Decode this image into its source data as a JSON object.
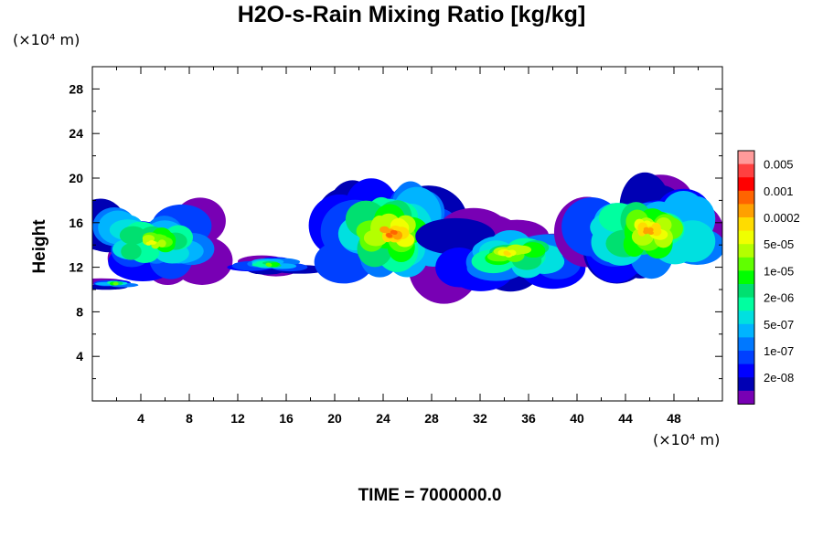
{
  "title": "H2O-s-Rain Mixing Ratio [kg/kg]",
  "yunit": "(×10⁴ m)",
  "xunit": "(×10⁴ m)",
  "ylabel": "Height",
  "time_label": "TIME = 7000000.0",
  "chart_data": {
    "type": "heatmap",
    "title": "H2O-s-Rain Mixing Ratio [kg/kg]",
    "ylabel": "Height",
    "xlabel": "",
    "xlim": [
      0,
      52
    ],
    "ylim": [
      0,
      30
    ],
    "x_ticks": [
      4,
      8,
      12,
      16,
      20,
      24,
      28,
      32,
      36,
      40,
      44,
      48
    ],
    "y_ticks": [
      4,
      8,
      12,
      16,
      20,
      24,
      28
    ],
    "colorbar": {
      "labels": [
        "0.005",
        "0.001",
        "0.0002",
        "5e-05",
        "1e-05",
        "2e-06",
        "5e-07",
        "1e-07",
        "2e-08"
      ],
      "colors_top_to_bottom": [
        "#ff9a9a",
        "#ff4040",
        "#ff0000",
        "#ff6400",
        "#ffa000",
        "#ffdc00",
        "#f0ff00",
        "#b4ff00",
        "#60ff00",
        "#00ff00",
        "#00e070",
        "#00ffa0",
        "#00e0e0",
        "#00b4ff",
        "#0078ff",
        "#0040ff",
        "#0000ff",
        "#0000b4",
        "#7800b4"
      ]
    },
    "cloud_layer": [
      {
        "x": [
          0,
          10
        ],
        "y": [
          11,
          17.5
        ],
        "peak": 4
      },
      {
        "x": [
          0.3,
          3.5
        ],
        "y": [
          10,
          11
        ],
        "peak": 2
      },
      {
        "x": [
          12,
          17.5
        ],
        "y": [
          11.5,
          13
        ],
        "peak": 2
      },
      {
        "x": [
          19.5,
          30
        ],
        "y": [
          10.5,
          19.5
        ],
        "peak": 7
      },
      {
        "x": [
          29,
          40
        ],
        "y": [
          10.5,
          16
        ],
        "peak": 5
      },
      {
        "x": [
          40,
          52
        ],
        "y": [
          11,
          19.5
        ],
        "peak": 6
      }
    ],
    "time": 7000000.0
  }
}
